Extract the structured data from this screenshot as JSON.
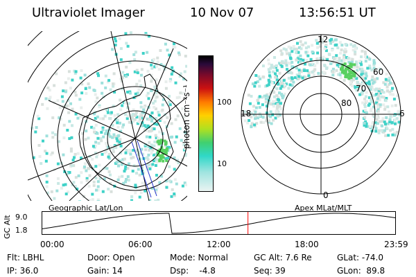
{
  "header": {
    "title": "Ultraviolet Imager",
    "date": "10 Nov 07",
    "time": "13:56:51 UT"
  },
  "colorbar": {
    "label": "photon cm⁻²s⁻¹",
    "ticks": [
      "100",
      "10"
    ]
  },
  "polar_plot": {
    "mlt_labels": {
      "top": "12",
      "left": "18",
      "right": "6",
      "bottom": "0"
    },
    "lat_labels": [
      "60",
      "70",
      "80"
    ]
  },
  "panel_labels": {
    "left": "Geographic Lat/Lon",
    "right": "Apex MLat/MLT"
  },
  "timeline": {
    "ylabel": "GC Alt",
    "yticks": [
      "9.0",
      "1.8"
    ],
    "xticks": [
      "00:00",
      "06:00",
      "12:00",
      "18:00",
      "23:59"
    ],
    "marker_time_hours": 13.95,
    "alt_max_re": 9.0,
    "alt_min_re": 1.8,
    "perigee_hours": 8.6,
    "apogee_hours": 20.0
  },
  "status": {
    "flt": "Flt: LBHL",
    "ip": "IP: 36.0",
    "door": "Door: Open",
    "gain": "Gain: 14",
    "mode": "Mode: Normal",
    "dsp": "Dsp:    -4.8",
    "gc_alt": "GC Alt: 7.6 Re",
    "seq": "Seq: 39",
    "glat": "GLat: -74.0",
    "glon": "GLon:  89.8"
  },
  "colors": {
    "marker": "#ff0000",
    "line": "#000000",
    "aurora_cyan": "#3fd2c8",
    "aurora_green": "#58d060",
    "noise_gray": "#d8e0dc"
  }
}
